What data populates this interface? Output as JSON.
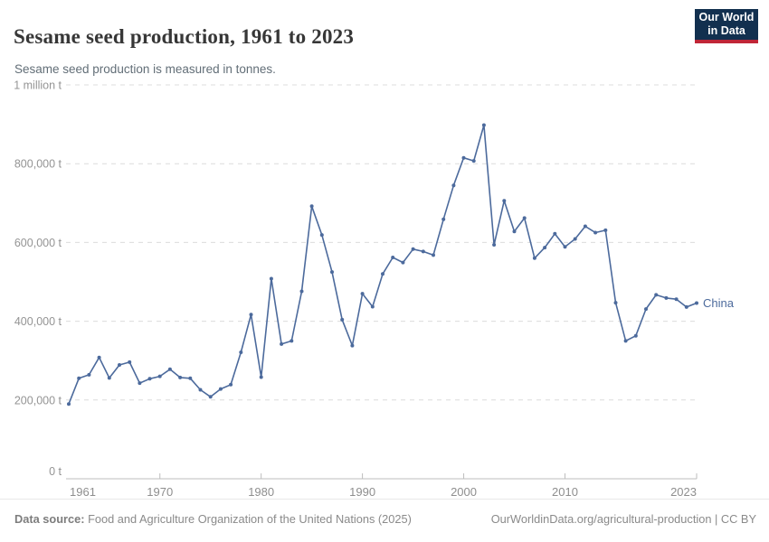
{
  "header": {
    "title": "Sesame seed production, 1961 to 2023",
    "subtitle": "Sesame seed production is measured in tonnes."
  },
  "logo": {
    "line1": "Our World",
    "line2": "in Data",
    "bg_color": "#12304f",
    "stripe_color": "#c02637"
  },
  "chart_data": {
    "type": "line",
    "title": "Sesame seed production, 1961 to 2023",
    "xlabel": "",
    "ylabel": "tonnes",
    "xlim": [
      1961,
      2023
    ],
    "ylim": [
      0,
      1000000
    ],
    "grid": "horizontal dashed",
    "legend_position": "end-of-line label",
    "x_ticks": [
      {
        "year": 1961,
        "label": "1961"
      },
      {
        "year": 1970,
        "label": "1970"
      },
      {
        "year": 1980,
        "label": "1980"
      },
      {
        "year": 1990,
        "label": "1990"
      },
      {
        "year": 2000,
        "label": "2000"
      },
      {
        "year": 2010,
        "label": "2010"
      },
      {
        "year": 2023,
        "label": "2023"
      }
    ],
    "y_ticks": [
      {
        "value": 0,
        "label": "0 t"
      },
      {
        "value": 200000,
        "label": "200,000 t"
      },
      {
        "value": 400000,
        "label": "400,000 t"
      },
      {
        "value": 600000,
        "label": "600,000 t"
      },
      {
        "value": 800000,
        "label": "800,000 t"
      },
      {
        "value": 1000000,
        "label": "1 million t"
      }
    ],
    "series": [
      {
        "name": "China",
        "color": "#4C6A9C",
        "years": [
          1961,
          1962,
          1963,
          1964,
          1965,
          1966,
          1967,
          1968,
          1969,
          1970,
          1971,
          1972,
          1973,
          1974,
          1975,
          1976,
          1977,
          1978,
          1979,
          1980,
          1981,
          1982,
          1983,
          1984,
          1985,
          1986,
          1987,
          1988,
          1989,
          1990,
          1991,
          1992,
          1993,
          1994,
          1995,
          1996,
          1997,
          1998,
          1999,
          2000,
          2001,
          2002,
          2003,
          2004,
          2005,
          2006,
          2007,
          2008,
          2009,
          2010,
          2011,
          2012,
          2013,
          2014,
          2015,
          2016,
          2017,
          2018,
          2019,
          2020,
          2021,
          2022,
          2023
        ],
        "values": [
          190000,
          255000,
          264000,
          308000,
          256000,
          289000,
          296000,
          243000,
          254000,
          260000,
          278000,
          257000,
          255000,
          226000,
          208000,
          228000,
          239000,
          321000,
          417000,
          258000,
          508000,
          342000,
          350000,
          476000,
          692000,
          619000,
          525000,
          404000,
          338000,
          470000,
          437000,
          520000,
          562000,
          549000,
          583000,
          577000,
          568000,
          659000,
          745000,
          815000,
          807000,
          898000,
          594000,
          706000,
          628000,
          662000,
          560000,
          587000,
          622000,
          589000,
          609000,
          641000,
          625000,
          631000,
          447000,
          350000,
          363000,
          431000,
          467000,
          459000,
          456000,
          436000,
          446000
        ]
      }
    ]
  },
  "footer": {
    "source_label": "Data source:",
    "source_text": " Food and Agriculture Organization of the United Nations (2025)",
    "link_text": "OurWorldinData.org/agricultural-production | CC BY"
  }
}
